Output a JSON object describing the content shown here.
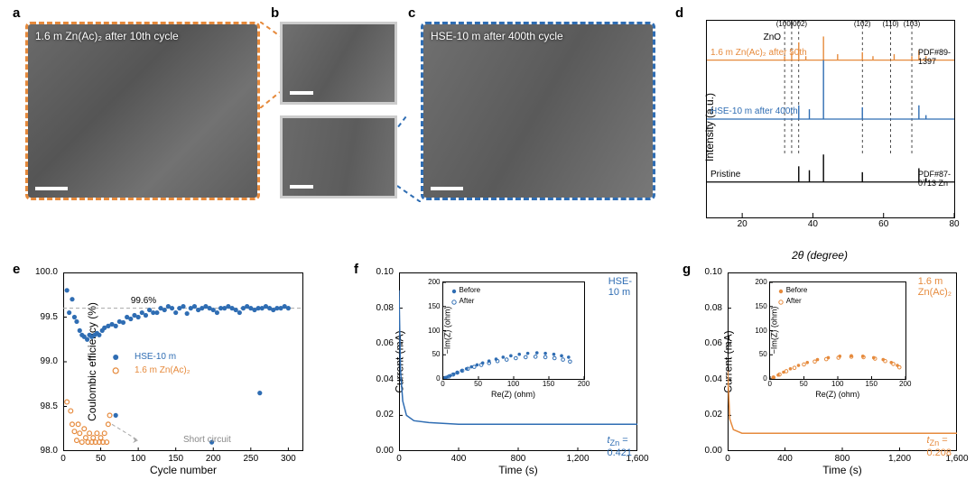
{
  "colors": {
    "orange": "#e68a3c",
    "blue": "#2f6db3",
    "black": "#000000",
    "gray_dash": "#a8a8a8"
  },
  "panels": {
    "a": {
      "label": "a",
      "caption": "1.6 m Zn(Ac)₂ after 10th cycle",
      "border_color": "#e68a3c"
    },
    "b": {
      "label": "b"
    },
    "c": {
      "label": "c",
      "caption": "HSE-10 m after 400th cycle",
      "border_color": "#2f6db3"
    },
    "d": {
      "label": "d",
      "ylabel": "Intensity (a.u.)",
      "xlabel": "2θ (degree)",
      "xlim": [
        10,
        80
      ],
      "xtick_step": 20,
      "traces": [
        {
          "name": "1.6 m Zn(Ac)₂ after 50th",
          "color": "#e68a3c",
          "baseline": 0.8,
          "peaks": [
            [
              32,
              0.02
            ],
            [
              34,
              0.04
            ],
            [
              36,
              0.09
            ],
            [
              38,
              0.02
            ],
            [
              43,
              0.12
            ],
            [
              47,
              0.03
            ],
            [
              54,
              0.04
            ],
            [
              57,
              0.02
            ],
            [
              63,
              0.03
            ],
            [
              68,
              0.02
            ],
            [
              70,
              0.05
            ],
            [
              72,
              0.02
            ]
          ],
          "zno_labels": [
            [
              32,
              "(100)"
            ],
            [
              36,
              "(002)"
            ],
            [
              54,
              "(102)"
            ],
            [
              62,
              "(110)"
            ],
            [
              68,
              "(103)"
            ]
          ],
          "pdf_label": "PDF#89-1397"
        },
        {
          "name": "HSE-10 m after 400th",
          "color": "#2f6db3",
          "baseline": 0.5,
          "peaks": [
            [
              36,
              0.07
            ],
            [
              39,
              0.05
            ],
            [
              43,
              0.3
            ],
            [
              54,
              0.06
            ],
            [
              70,
              0.07
            ],
            [
              72,
              0.02
            ]
          ]
        },
        {
          "name": "Pristine",
          "color": "#000000",
          "baseline": 0.18,
          "peaks": [
            [
              36,
              0.08
            ],
            [
              39,
              0.06
            ],
            [
              43,
              0.14
            ],
            [
              54,
              0.05
            ],
            [
              70,
              0.07
            ],
            [
              72,
              0.02
            ]
          ],
          "pdf_label": "PDF#87-0713 Zn"
        }
      ],
      "zno_text": "ZnO"
    },
    "e": {
      "label": "e",
      "ylabel": "Coulombic efficiency (%)",
      "xlabel": "Cycle number",
      "xlim": [
        0,
        320
      ],
      "xtick_step": 50,
      "ylim": [
        98.0,
        100.0
      ],
      "ytick_step": 0.5,
      "ref_line": 99.6,
      "ref_label": "99.6%",
      "series": [
        {
          "name": "HSE-10 m",
          "color": "#2f6db3",
          "marker": "filled",
          "label_pos": [
            95,
            99.05
          ]
        },
        {
          "name": "1.6 m Zn(Ac)₂",
          "color": "#e68a3c",
          "marker": "open",
          "label_pos": [
            95,
            98.9
          ]
        }
      ],
      "short_circuit_label": "Short circuit",
      "short_circuit_pos": [
        160,
        98.12
      ],
      "orange_data": [
        [
          5,
          98.55
        ],
        [
          10,
          98.45
        ],
        [
          12,
          98.3
        ],
        [
          15,
          98.22
        ],
        [
          18,
          98.12
        ],
        [
          20,
          98.3
        ],
        [
          22,
          98.2
        ],
        [
          25,
          98.1
        ],
        [
          28,
          98.25
        ],
        [
          30,
          98.15
        ],
        [
          33,
          98.1
        ],
        [
          35,
          98.2
        ],
        [
          38,
          98.1
        ],
        [
          40,
          98.15
        ],
        [
          43,
          98.1
        ],
        [
          45,
          98.2
        ],
        [
          48,
          98.1
        ],
        [
          50,
          98.15
        ],
        [
          53,
          98.1
        ],
        [
          55,
          98.2
        ],
        [
          58,
          98.1
        ],
        [
          60,
          98.3
        ],
        [
          62,
          98.4
        ]
      ],
      "blue_data": [
        [
          5,
          99.8
        ],
        [
          8,
          99.55
        ],
        [
          12,
          99.7
        ],
        [
          15,
          99.5
        ],
        [
          18,
          99.45
        ],
        [
          22,
          99.35
        ],
        [
          25,
          99.3
        ],
        [
          28,
          99.28
        ],
        [
          32,
          99.25
        ],
        [
          35,
          99.3
        ],
        [
          38,
          99.28
        ],
        [
          42,
          99.3
        ],
        [
          45,
          99.32
        ],
        [
          48,
          99.3
        ],
        [
          52,
          99.35
        ],
        [
          55,
          99.38
        ],
        [
          60,
          99.4
        ],
        [
          65,
          99.42
        ],
        [
          70,
          99.4
        ],
        [
          75,
          99.45
        ],
        [
          80,
          99.44
        ],
        [
          85,
          99.5
        ],
        [
          90,
          99.48
        ],
        [
          95,
          99.52
        ],
        [
          100,
          99.5
        ],
        [
          105,
          99.55
        ],
        [
          110,
          99.52
        ],
        [
          115,
          99.58
        ],
        [
          120,
          99.55
        ],
        [
          125,
          99.55
        ],
        [
          130,
          99.6
        ],
        [
          135,
          99.58
        ],
        [
          140,
          99.62
        ],
        [
          145,
          99.6
        ],
        [
          150,
          99.55
        ],
        [
          155,
          99.6
        ],
        [
          160,
          99.62
        ],
        [
          165,
          99.54
        ],
        [
          170,
          99.6
        ],
        [
          175,
          99.62
        ],
        [
          180,
          99.58
        ],
        [
          185,
          99.6
        ],
        [
          190,
          99.62
        ],
        [
          195,
          99.6
        ],
        [
          200,
          99.58
        ],
        [
          205,
          99.55
        ],
        [
          210,
          99.6
        ],
        [
          215,
          99.6
        ],
        [
          220,
          99.62
        ],
        [
          225,
          99.6
        ],
        [
          230,
          99.58
        ],
        [
          235,
          99.55
        ],
        [
          240,
          99.6
        ],
        [
          245,
          99.62
        ],
        [
          250,
          99.6
        ],
        [
          255,
          99.58
        ],
        [
          260,
          99.6
        ],
        [
          262,
          98.65
        ],
        [
          265,
          99.6
        ],
        [
          270,
          99.62
        ],
        [
          275,
          99.6
        ],
        [
          280,
          99.58
        ],
        [
          285,
          99.6
        ],
        [
          290,
          99.6
        ],
        [
          295,
          99.62
        ],
        [
          300,
          99.6
        ]
      ],
      "blue_outliers": [
        [
          70,
          98.4
        ],
        [
          198,
          98.1
        ]
      ]
    },
    "f": {
      "label": "f",
      "ylabel": "Current (mA)",
      "xlabel": "Time (s)",
      "xlim": [
        0,
        1600
      ],
      "xtick_step": 400,
      "ylim": [
        0,
        0.1
      ],
      "ytick_step": 0.02,
      "title_right": "HSE-10 m",
      "title_color": "#2f6db3",
      "t_label": "t_Zn = 0.421",
      "t_color": "#2f6db3",
      "trace_color": "#2f6db3",
      "trace": [
        [
          0,
          0.09
        ],
        [
          10,
          0.045
        ],
        [
          25,
          0.028
        ],
        [
          50,
          0.02
        ],
        [
          100,
          0.017
        ],
        [
          200,
          0.016
        ],
        [
          400,
          0.015
        ],
        [
          800,
          0.015
        ],
        [
          1200,
          0.015
        ],
        [
          1600,
          0.015
        ]
      ],
      "inset": {
        "xlabel": "Re(Z) (ohm)",
        "ylabel": "−Im(Z) (ohm)",
        "xlim": [
          0,
          200
        ],
        "ylim": [
          0,
          200
        ],
        "tick_step": 50,
        "legend": [
          "Before",
          "After"
        ],
        "before_color": "#2f6db3",
        "after_color": "#2f6db3",
        "before": [
          [
            3,
            2
          ],
          [
            6,
            4
          ],
          [
            10,
            7
          ],
          [
            15,
            10
          ],
          [
            20,
            13
          ],
          [
            26,
            17
          ],
          [
            33,
            21
          ],
          [
            40,
            25
          ],
          [
            48,
            29
          ],
          [
            56,
            33
          ],
          [
            65,
            37
          ],
          [
            75,
            41
          ],
          [
            85,
            45
          ],
          [
            96,
            48
          ],
          [
            108,
            51
          ],
          [
            120,
            53
          ],
          [
            133,
            54
          ],
          [
            145,
            53
          ],
          [
            157,
            51
          ],
          [
            168,
            48
          ],
          [
            178,
            45
          ]
        ],
        "after": [
          [
            3,
            2
          ],
          [
            8,
            5
          ],
          [
            14,
            9
          ],
          [
            20,
            13
          ],
          [
            27,
            17
          ],
          [
            35,
            21
          ],
          [
            44,
            25
          ],
          [
            54,
            29
          ],
          [
            65,
            33
          ],
          [
            77,
            37
          ],
          [
            90,
            40
          ],
          [
            103,
            43
          ],
          [
            117,
            45
          ],
          [
            131,
            46
          ],
          [
            145,
            45
          ],
          [
            158,
            43
          ],
          [
            170,
            40
          ],
          [
            180,
            36
          ]
        ]
      }
    },
    "g": {
      "label": "g",
      "ylabel": "Current (mA)",
      "xlabel": "Time (s)",
      "xlim": [
        0,
        1600
      ],
      "xtick_step": 400,
      "ylim": [
        0,
        0.1
      ],
      "ytick_step": 0.02,
      "title_right": "1.6 m Zn(Ac)₂",
      "title_color": "#e68a3c",
      "t_label": "t_Zn = 0.208",
      "t_color": "#e68a3c",
      "trace_color": "#e68a3c",
      "trace": [
        [
          0,
          0.045
        ],
        [
          15,
          0.018
        ],
        [
          40,
          0.012
        ],
        [
          100,
          0.01
        ],
        [
          300,
          0.01
        ],
        [
          800,
          0.01
        ],
        [
          1600,
          0.01
        ]
      ],
      "inset": {
        "xlabel": "Re(Z) (ohm)",
        "ylabel": "−Im(Z) (ohm)",
        "xlim": [
          0,
          200
        ],
        "ylim": [
          0,
          200
        ],
        "tick_step": 50,
        "legend": [
          "Before",
          "After"
        ],
        "before_color": "#e68a3c",
        "after_color": "#e68a3c",
        "before": [
          [
            5,
            3
          ],
          [
            12,
            8
          ],
          [
            20,
            14
          ],
          [
            30,
            21
          ],
          [
            42,
            28
          ],
          [
            55,
            34
          ],
          [
            70,
            40
          ],
          [
            86,
            44
          ],
          [
            103,
            47
          ],
          [
            120,
            48
          ],
          [
            137,
            47
          ],
          [
            153,
            44
          ],
          [
            167,
            40
          ],
          [
            179,
            34
          ],
          [
            188,
            28
          ]
        ],
        "after": [
          [
            5,
            3
          ],
          [
            14,
            9
          ],
          [
            24,
            16
          ],
          [
            36,
            23
          ],
          [
            50,
            30
          ],
          [
            66,
            36
          ],
          [
            83,
            41
          ],
          [
            101,
            44
          ],
          [
            120,
            46
          ],
          [
            138,
            45
          ],
          [
            155,
            42
          ],
          [
            170,
            37
          ],
          [
            182,
            31
          ],
          [
            191,
            24
          ]
        ]
      }
    }
  }
}
